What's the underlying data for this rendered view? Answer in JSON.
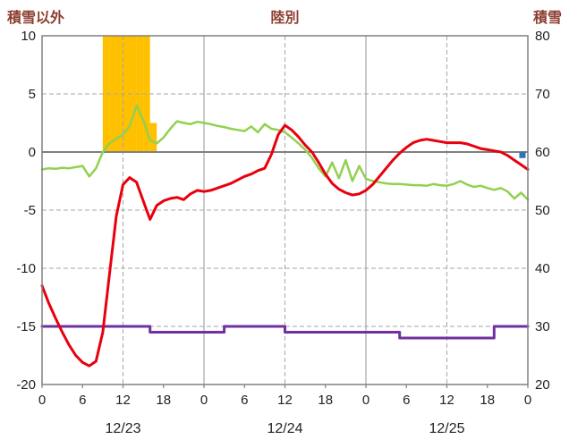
{
  "header": {
    "left_axis_title": "積雪以外",
    "chart_title": "陸別",
    "right_axis_title": "積雪"
  },
  "chart_data": {
    "type": "line+bar",
    "title": "陸別",
    "ylabel_left": "積雪以外",
    "ylabel_right": "積雪",
    "left_axis": {
      "min": -20,
      "max": 10,
      "ticks": [
        "10",
        "5",
        "0",
        "-5",
        "-10",
        "-15",
        "-20"
      ],
      "tick_values": [
        10,
        5,
        0,
        -5,
        -10,
        -15,
        -20
      ]
    },
    "right_axis": {
      "min": 20,
      "max": 80,
      "ticks": [
        "80",
        "70",
        "60",
        "50",
        "40",
        "30",
        "20"
      ],
      "tick_values": [
        80,
        70,
        60,
        50,
        40,
        30,
        20
      ]
    },
    "x_axis": {
      "min_hour": 0,
      "max_hour": 72,
      "tick_hours": [
        0,
        6,
        12,
        18,
        24,
        30,
        36,
        42,
        48,
        54,
        60,
        66,
        72
      ],
      "tick_labels": [
        "0",
        "6",
        "12",
        "18",
        "0",
        "6",
        "12",
        "18",
        "0",
        "6",
        "12",
        "18",
        "0"
      ],
      "day_labels": [
        {
          "label": "12/23",
          "center_hour": 12
        },
        {
          "label": "12/24",
          "center_hour": 36
        },
        {
          "label": "12/25",
          "center_hour": 60
        }
      ],
      "dashed_gridline_hours": [
        12,
        36,
        60
      ],
      "solid_gridline_hours": [
        24,
        48
      ]
    },
    "series": {
      "red_line": {
        "axis": "left",
        "color": "#e8000d",
        "width": 3,
        "start_hour": 0,
        "step_hours": 1,
        "values": [
          -11.5,
          -13.0,
          -14.3,
          -15.5,
          -16.6,
          -17.5,
          -18.1,
          -18.4,
          -18.0,
          -15.5,
          -10.5,
          -5.5,
          -2.8,
          -2.2,
          -2.6,
          -4.2,
          -5.8,
          -4.6,
          -4.2,
          -4.0,
          -3.9,
          -4.1,
          -3.6,
          -3.3,
          -3.4,
          -3.3,
          -3.1,
          -2.9,
          -2.7,
          -2.4,
          -2.1,
          -1.9,
          -1.6,
          -1.4,
          -0.2,
          1.5,
          2.3,
          1.9,
          1.3,
          0.6,
          0.0,
          -0.9,
          -1.9,
          -2.7,
          -3.2,
          -3.5,
          -3.7,
          -3.6,
          -3.3,
          -2.8,
          -2.1,
          -1.4,
          -0.7,
          -0.1,
          0.4,
          0.8,
          1.0,
          1.1,
          1.0,
          0.9,
          0.8,
          0.8,
          0.8,
          0.7,
          0.5,
          0.3,
          0.2,
          0.1,
          0.0,
          -0.3,
          -0.7,
          -1.1,
          -1.5
        ]
      },
      "green_line": {
        "axis": "right",
        "color": "#92d050",
        "width": 2.5,
        "start_hour": 0,
        "step_hours": 1,
        "values": [
          57.0,
          57.2,
          57.1,
          57.3,
          57.2,
          57.4,
          57.6,
          55.8,
          57.2,
          60.0,
          61.5,
          62.3,
          63.0,
          64.5,
          68.0,
          65.5,
          62.0,
          61.5,
          62.5,
          64.0,
          65.3,
          65.0,
          64.8,
          65.2,
          65.0,
          64.8,
          64.5,
          64.3,
          64.0,
          63.8,
          63.6,
          64.4,
          63.4,
          64.8,
          64.0,
          63.8,
          63.4,
          62.5,
          61.5,
          60.4,
          59.0,
          57.2,
          55.8,
          58.2,
          55.5,
          58.6,
          55.0,
          57.6,
          55.4,
          55.0,
          54.8,
          54.6,
          54.5,
          54.5,
          54.4,
          54.3,
          54.3,
          54.2,
          54.5,
          54.3,
          54.2,
          54.5,
          55.0,
          54.4,
          54.0,
          54.2,
          53.8,
          53.5,
          53.8,
          53.2,
          52.0,
          53.0,
          51.8
        ]
      },
      "purple_line": {
        "axis": "right",
        "color": "#7030a0",
        "width": 3,
        "steps": [
          {
            "from": 0,
            "to": 16,
            "value": 30
          },
          {
            "from": 16,
            "to": 27,
            "value": 29
          },
          {
            "from": 27,
            "to": 36,
            "value": 30
          },
          {
            "from": 36,
            "to": 53,
            "value": 29
          },
          {
            "from": 53,
            "to": 67,
            "value": 28
          },
          {
            "from": 67,
            "to": 72,
            "value": 30
          }
        ]
      },
      "orange_bars": {
        "axis": "left",
        "color": "#ffc000",
        "bars": [
          {
            "hour": 9,
            "value": 10
          },
          {
            "hour": 10,
            "value": 10
          },
          {
            "hour": 11,
            "value": 10
          },
          {
            "hour": 12,
            "value": 10
          },
          {
            "hour": 13,
            "value": 10
          },
          {
            "hour": 14,
            "value": 10
          },
          {
            "hour": 15,
            "value": 10
          },
          {
            "hour": 16,
            "value": 2.5
          }
        ]
      }
    },
    "marker": {
      "color": "#2e75b6",
      "hour": 71.2,
      "value_right": 59.5,
      "size": 7
    },
    "style": {
      "grid_color": "#a6a6a6",
      "zero_line_color": "#808080",
      "border_color": "#808080",
      "tick_label_color": "#222222",
      "plot_background": "#ffffff"
    }
  }
}
